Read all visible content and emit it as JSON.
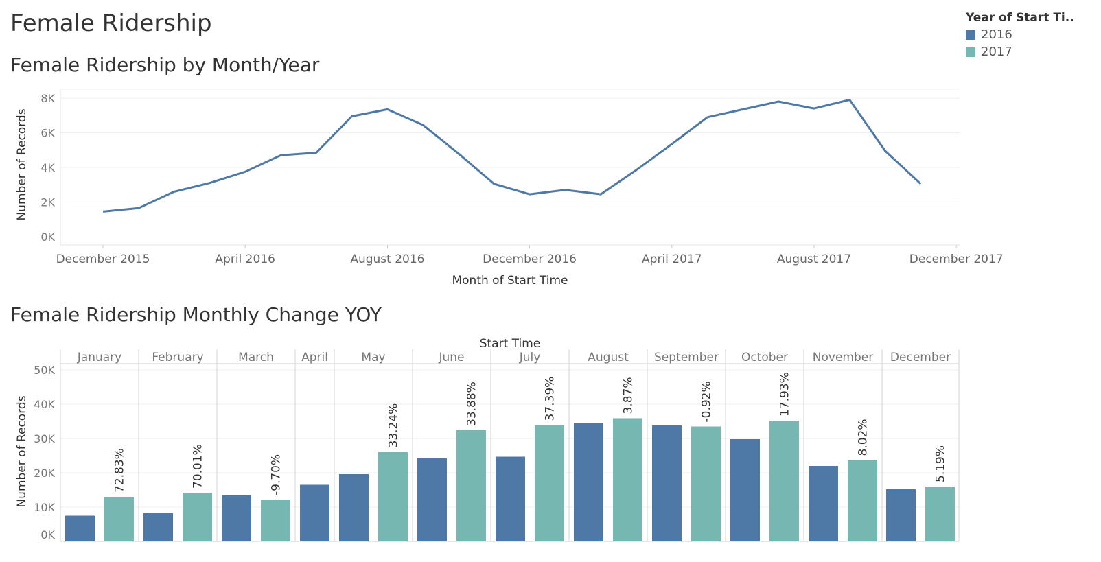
{
  "dashboard": {
    "title": "Female Ridership"
  },
  "legend": {
    "title": "Year of Start Ti..",
    "items": [
      {
        "label": "2016",
        "color": "#4e79a7"
      },
      {
        "label": "2017",
        "color": "#76b7b2"
      }
    ]
  },
  "chart_data": [
    {
      "type": "line",
      "title": "Female Ridership by Month/Year",
      "xlabel": "Month of Start Time",
      "ylabel": "Number of Records",
      "ylim": [
        0,
        8000
      ],
      "yticks": [
        "0K",
        "2K",
        "4K",
        "6K",
        "8K"
      ],
      "xticks": [
        "December 2015",
        "April 2016",
        "August 2016",
        "December 2016",
        "April 2017",
        "August 2017",
        "December 2017"
      ],
      "grid": "horizontal",
      "series": [
        {
          "color": "#4e79a7",
          "x": [
            "2016-01",
            "2016-02",
            "2016-03",
            "2016-04",
            "2016-05",
            "2016-06",
            "2016-07",
            "2016-08",
            "2016-09",
            "2016-10",
            "2016-11",
            "2016-12",
            "2017-01",
            "2017-02",
            "2017-03",
            "2017-04",
            "2017-05",
            "2017-06",
            "2017-07",
            "2017-08",
            "2017-09",
            "2017-10",
            "2017-11",
            "2017-12"
          ],
          "values": [
            1450,
            1650,
            2600,
            3100,
            3750,
            4700,
            4850,
            6950,
            7350,
            6450,
            4800,
            3050,
            2450,
            2700,
            2450,
            3850,
            5350,
            6900,
            7350,
            7800,
            7400,
            7900,
            4950,
            3050
          ]
        }
      ]
    },
    {
      "type": "bar",
      "title": "Female Ridership Monthly Change YOY",
      "column_header": "Start Time",
      "ylabel": "Number of Records",
      "ylim": [
        0,
        50000
      ],
      "yticks": [
        "0K",
        "10K",
        "20K",
        "30K",
        "40K",
        "50K"
      ],
      "grid": "horizontal",
      "categories": [
        "January",
        "February",
        "March",
        "April",
        "May",
        "June",
        "July",
        "August",
        "September",
        "October",
        "November",
        "December"
      ],
      "series": [
        {
          "name": "2016",
          "color": "#4e79a7",
          "values": [
            7500,
            8300,
            13500,
            16500,
            19600,
            24200,
            24700,
            34600,
            33800,
            29800,
            22000,
            15200
          ]
        },
        {
          "name": "2017",
          "color": "#76b7b2",
          "values": [
            13000,
            14200,
            12200,
            null,
            26100,
            32400,
            33900,
            35900,
            33500,
            35200,
            23700,
            16000
          ]
        }
      ],
      "change_labels": [
        "72.83%",
        "70.01%",
        "-9.70%",
        "",
        "33.24%",
        "33.88%",
        "37.39%",
        "3.87%",
        "-0.92%",
        "17.93%",
        "8.02%",
        "5.19%"
      ]
    }
  ]
}
